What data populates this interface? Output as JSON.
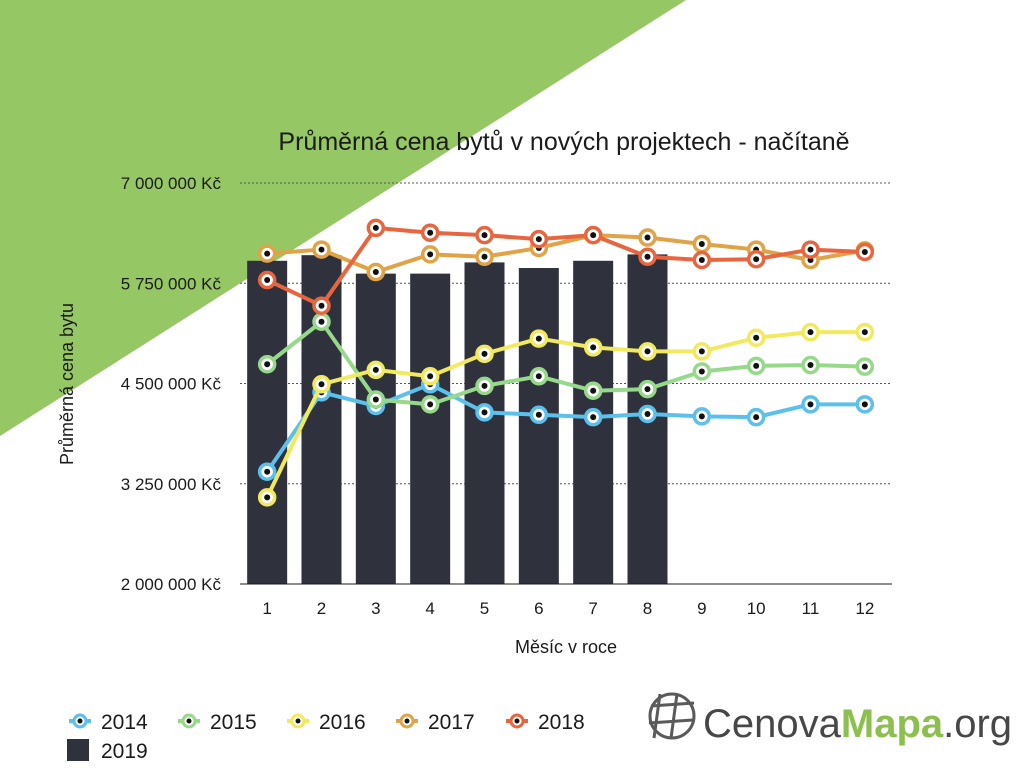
{
  "chart_data": {
    "type": "line",
    "title": "Průměrná cena bytů v nových projektech - načítaně",
    "xlabel": "Měsíc v roce",
    "ylabel": "Průměrná cena bytu",
    "categories": [
      "1",
      "2",
      "3",
      "4",
      "5",
      "6",
      "7",
      "8",
      "9",
      "10",
      "11",
      "12"
    ],
    "ylim": [
      2000000,
      7000000
    ],
    "yticks": [
      2000000,
      3250000,
      4500000,
      5750000,
      7000000
    ],
    "ytick_labels": [
      "2 000 000 Kč",
      "3 250 000 Kč",
      "4 500 000 Kč",
      "5 750 000 Kč",
      "7 000 000 Kč"
    ],
    "grid": true,
    "legend_position": "bottom-left",
    "bar_series": {
      "name": "2019",
      "color": "#2f323d",
      "values": [
        6030000,
        6100000,
        5870000,
        5870000,
        6010000,
        5940000,
        6030000,
        6110000,
        null,
        null,
        null,
        null
      ]
    },
    "series": [
      {
        "name": "2014",
        "color": "#5bc0eb",
        "values": [
          3400000,
          4390000,
          4220000,
          4490000,
          4140000,
          4110000,
          4080000,
          4120000,
          4090000,
          4080000,
          4240000,
          4240000
        ]
      },
      {
        "name": "2015",
        "color": "#97d98a",
        "values": [
          4740000,
          5270000,
          4300000,
          4240000,
          4470000,
          4590000,
          4410000,
          4430000,
          4650000,
          4720000,
          4730000,
          4710000
        ]
      },
      {
        "name": "2016",
        "color": "#f2ea5e",
        "values": [
          3080000,
          4490000,
          4670000,
          4590000,
          4870000,
          5060000,
          4950000,
          4900000,
          4900000,
          5070000,
          5140000,
          5140000
        ]
      },
      {
        "name": "2017",
        "color": "#e0a347",
        "values": [
          6120000,
          6170000,
          5890000,
          6110000,
          6080000,
          6190000,
          6350000,
          6320000,
          6240000,
          6170000,
          6040000,
          6160000
        ]
      },
      {
        "name": "2018",
        "color": "#e8663f",
        "values": [
          5790000,
          5470000,
          6440000,
          6380000,
          6350000,
          6300000,
          6350000,
          6080000,
          6040000,
          6050000,
          6170000,
          6140000
        ]
      }
    ]
  },
  "logo": {
    "part1": "Cenova",
    "part2": "Mapa",
    "part3": ".org"
  }
}
